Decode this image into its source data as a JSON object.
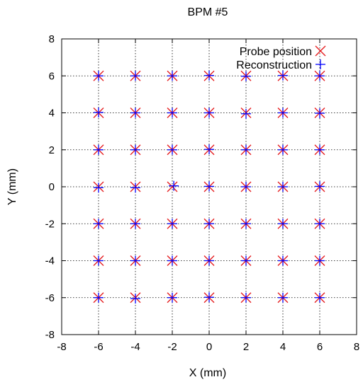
{
  "chart_data": {
    "type": "scatter",
    "title": "BPM #5",
    "xlabel": "X (mm)",
    "ylabel": "Y (mm)",
    "xlim": [
      -8,
      8
    ],
    "ylim": [
      -8,
      8
    ],
    "xticks": [
      -8,
      -6,
      -4,
      -2,
      0,
      2,
      4,
      6,
      8
    ],
    "yticks": [
      -8,
      -6,
      -4,
      -2,
      0,
      2,
      4,
      6,
      8
    ],
    "grid": true,
    "legend_position": "top-right",
    "series": [
      {
        "name": "Probe position",
        "marker": "x",
        "color": "#e41a1c",
        "points": [
          [
            -6,
            6
          ],
          [
            -4,
            6
          ],
          [
            -2,
            6
          ],
          [
            0,
            6
          ],
          [
            2,
            6
          ],
          [
            4,
            6
          ],
          [
            6,
            6
          ],
          [
            -6,
            4
          ],
          [
            -4,
            4
          ],
          [
            -2,
            4
          ],
          [
            0,
            4
          ],
          [
            2,
            4
          ],
          [
            4,
            4
          ],
          [
            6,
            4
          ],
          [
            -6,
            2
          ],
          [
            -4,
            2
          ],
          [
            -2,
            2
          ],
          [
            0,
            2
          ],
          [
            2,
            2
          ],
          [
            4,
            2
          ],
          [
            6,
            2
          ],
          [
            -6,
            0
          ],
          [
            -4,
            0
          ],
          [
            -2,
            0
          ],
          [
            0,
            0
          ],
          [
            2,
            0
          ],
          [
            4,
            0
          ],
          [
            6,
            0
          ],
          [
            -6,
            -2
          ],
          [
            -4,
            -2
          ],
          [
            -2,
            -2
          ],
          [
            0,
            -2
          ],
          [
            2,
            -2
          ],
          [
            4,
            -2
          ],
          [
            6,
            -2
          ],
          [
            -6,
            -4
          ],
          [
            -4,
            -4
          ],
          [
            -2,
            -4
          ],
          [
            0,
            -4
          ],
          [
            2,
            -4
          ],
          [
            4,
            -4
          ],
          [
            6,
            -4
          ],
          [
            -6,
            -6
          ],
          [
            -4,
            -6
          ],
          [
            -2,
            -6
          ],
          [
            0,
            -6
          ],
          [
            2,
            -6
          ],
          [
            4,
            -6
          ],
          [
            6,
            -6
          ]
        ]
      },
      {
        "name": "Reconstruction",
        "marker": "+",
        "color": "#0000ff",
        "points": [
          [
            -6,
            6
          ],
          [
            -4,
            6
          ],
          [
            -2,
            6
          ],
          [
            0,
            6.02
          ],
          [
            2,
            5.98
          ],
          [
            4,
            6.02
          ],
          [
            6,
            6
          ],
          [
            -6,
            4.02
          ],
          [
            -4,
            4
          ],
          [
            -2,
            4
          ],
          [
            0,
            4
          ],
          [
            2,
            3.95
          ],
          [
            4,
            4
          ],
          [
            6,
            3.98
          ],
          [
            -6,
            2
          ],
          [
            -4,
            2
          ],
          [
            -2,
            2
          ],
          [
            0,
            2.02
          ],
          [
            2,
            2
          ],
          [
            4,
            2
          ],
          [
            6,
            2
          ],
          [
            -6,
            -0.05
          ],
          [
            -4,
            -0.05
          ],
          [
            -1.92,
            0.05
          ],
          [
            0,
            0.02
          ],
          [
            2,
            0
          ],
          [
            4,
            0
          ],
          [
            6,
            0.02
          ],
          [
            -6,
            -2
          ],
          [
            -4,
            -2
          ],
          [
            -2,
            -2
          ],
          [
            0,
            -2
          ],
          [
            2,
            -2
          ],
          [
            4,
            -2
          ],
          [
            6,
            -2
          ],
          [
            -6,
            -4
          ],
          [
            -4,
            -4
          ],
          [
            -2,
            -4
          ],
          [
            0,
            -4
          ],
          [
            2,
            -4
          ],
          [
            4,
            -4
          ],
          [
            6,
            -4
          ],
          [
            -6,
            -6
          ],
          [
            -4,
            -6.05
          ],
          [
            -2,
            -6
          ],
          [
            0,
            -5.98
          ],
          [
            2,
            -6
          ],
          [
            4,
            -6
          ],
          [
            6,
            -6
          ]
        ]
      }
    ]
  }
}
